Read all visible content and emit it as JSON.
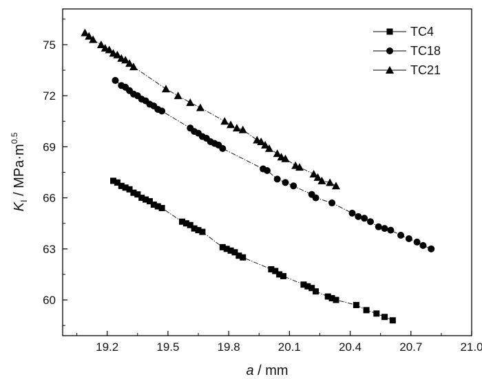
{
  "chart_data": {
    "type": "line",
    "xlabel": {
      "var": "a",
      "unit": " / mm"
    },
    "ylabel": {
      "var": "K",
      "sub": "I",
      "unit": " / MPa·m",
      "sup": "0.5"
    },
    "xlim": [
      18.98,
      21.0
    ],
    "ylim": [
      57.9,
      77.1
    ],
    "xticks": [
      19.2,
      19.5,
      19.8,
      20.1,
      20.4,
      20.7,
      21.0
    ],
    "xtick_labels": [
      "19.2",
      "19.5",
      "19.8",
      "20.1",
      "20.4",
      "20.7",
      "21.0"
    ],
    "yticks": [
      60,
      63,
      66,
      69,
      72,
      75
    ],
    "ytick_labels": [
      "60",
      "63",
      "66",
      "69",
      "72",
      "75"
    ],
    "grid": false,
    "legend_position": "top-right",
    "series": [
      {
        "name": "TC4",
        "marker": "square",
        "x": [
          19.23,
          19.25,
          19.27,
          19.29,
          19.31,
          19.33,
          19.35,
          19.37,
          19.39,
          19.41,
          19.43,
          19.45,
          19.47,
          19.57,
          19.59,
          19.61,
          19.63,
          19.65,
          19.67,
          19.77,
          19.79,
          19.81,
          19.83,
          19.85,
          19.87,
          20.01,
          20.03,
          20.05,
          20.07,
          20.17,
          20.19,
          20.21,
          20.23,
          20.29,
          20.31,
          20.33,
          20.43,
          20.48,
          20.53,
          20.57,
          20.61
        ],
        "y": [
          67.0,
          66.9,
          66.7,
          66.6,
          66.5,
          66.3,
          66.2,
          66.0,
          65.9,
          65.8,
          65.6,
          65.5,
          65.4,
          64.6,
          64.5,
          64.4,
          64.2,
          64.1,
          64.0,
          63.1,
          63.0,
          62.9,
          62.8,
          62.6,
          62.5,
          61.8,
          61.7,
          61.5,
          61.4,
          60.9,
          60.8,
          60.7,
          60.5,
          60.2,
          60.1,
          60.0,
          59.7,
          59.4,
          59.2,
          59.0,
          58.8
        ]
      },
      {
        "name": "TC18",
        "marker": "circle",
        "x": [
          19.24,
          19.27,
          19.29,
          19.31,
          19.33,
          19.35,
          19.37,
          19.39,
          19.41,
          19.43,
          19.45,
          19.47,
          19.61,
          19.63,
          19.65,
          19.67,
          19.69,
          19.71,
          19.73,
          19.75,
          19.77,
          19.97,
          19.99,
          20.04,
          20.08,
          20.12,
          20.21,
          20.23,
          20.31,
          20.41,
          20.44,
          20.47,
          20.5,
          20.54,
          20.57,
          20.6,
          20.65,
          20.69,
          20.73,
          20.76,
          20.8
        ],
        "y": [
          72.9,
          72.6,
          72.5,
          72.3,
          72.1,
          72.0,
          71.8,
          71.7,
          71.5,
          71.4,
          71.2,
          71.1,
          70.1,
          69.9,
          69.8,
          69.6,
          69.5,
          69.3,
          69.2,
          69.1,
          68.9,
          67.7,
          67.6,
          67.1,
          66.9,
          66.7,
          66.2,
          66.0,
          65.7,
          65.1,
          64.9,
          64.8,
          64.6,
          64.3,
          64.2,
          64.1,
          63.8,
          63.6,
          63.4,
          63.2,
          63.0
        ]
      },
      {
        "name": "TC21",
        "marker": "triangle",
        "x": [
          19.09,
          19.11,
          19.13,
          19.17,
          19.19,
          19.21,
          19.23,
          19.25,
          19.27,
          19.29,
          19.31,
          19.33,
          19.49,
          19.55,
          19.61,
          19.66,
          19.78,
          19.81,
          19.84,
          19.87,
          19.94,
          19.96,
          19.98,
          20.0,
          20.04,
          20.06,
          20.08,
          20.13,
          20.15,
          20.22,
          20.24,
          20.26,
          20.3,
          20.33
        ],
        "y": [
          75.7,
          75.5,
          75.3,
          75.0,
          74.8,
          74.7,
          74.5,
          74.4,
          74.2,
          74.1,
          73.9,
          73.7,
          72.4,
          72.0,
          71.6,
          71.3,
          70.5,
          70.3,
          70.1,
          70.0,
          69.4,
          69.3,
          69.1,
          68.9,
          68.6,
          68.4,
          68.3,
          67.9,
          67.8,
          67.4,
          67.2,
          67.0,
          66.9,
          66.7
        ]
      }
    ]
  }
}
